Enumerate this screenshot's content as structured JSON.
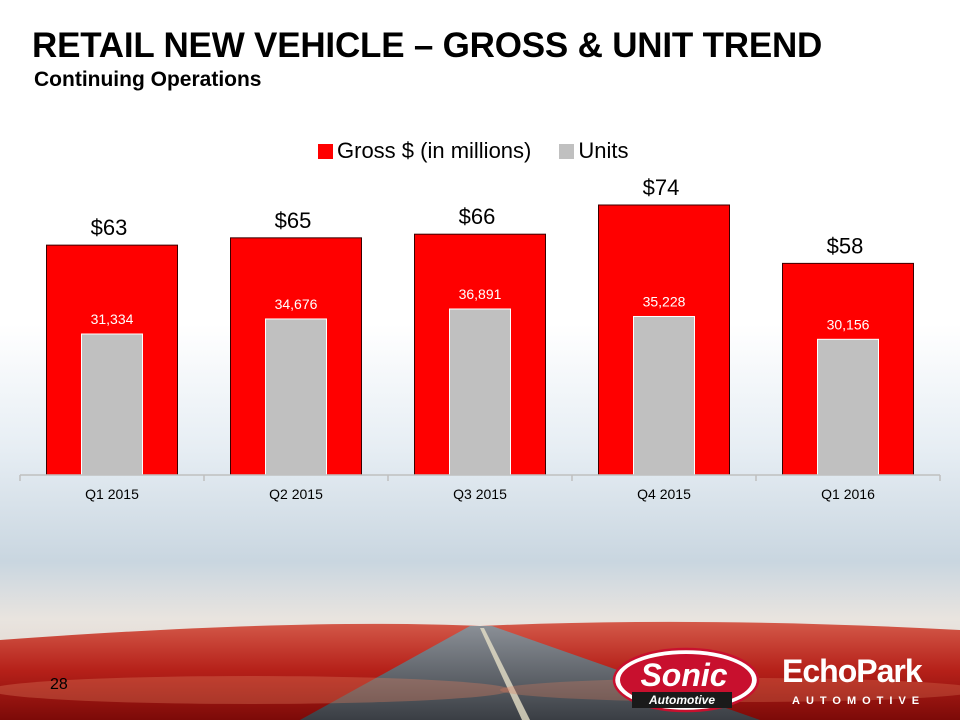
{
  "slide": {
    "title": "RETAIL NEW VEHICLE – GROSS & UNIT TREND",
    "subtitle": "Continuing Operations",
    "page_number": "28"
  },
  "colors": {
    "gross": "#ff0000",
    "units": "#c0c0c0",
    "axis": "#bfbfbf"
  },
  "logos": {
    "sonic_line1": "Sonic",
    "sonic_line2": "Automotive",
    "echo_line1": "EchoPark",
    "echo_line2": "AUTOMOTIVE"
  },
  "chart_data": {
    "type": "bar",
    "categories": [
      "Q1 2015",
      "Q2 2015",
      "Q3 2015",
      "Q4 2015",
      "Q1 2016"
    ],
    "series": [
      {
        "name": "Gross $ (in millions)",
        "values": [
          63,
          65,
          66,
          74,
          58
        ],
        "labels": [
          "$63",
          "$65",
          "$66",
          "$74",
          "$58"
        ]
      },
      {
        "name": "Units",
        "values": [
          31334,
          34676,
          36891,
          35228,
          30156
        ],
        "labels": [
          "31,334",
          "34,676",
          "36,891",
          "35,228",
          "30,156"
        ]
      }
    ],
    "legend": "top",
    "grid": false
  }
}
